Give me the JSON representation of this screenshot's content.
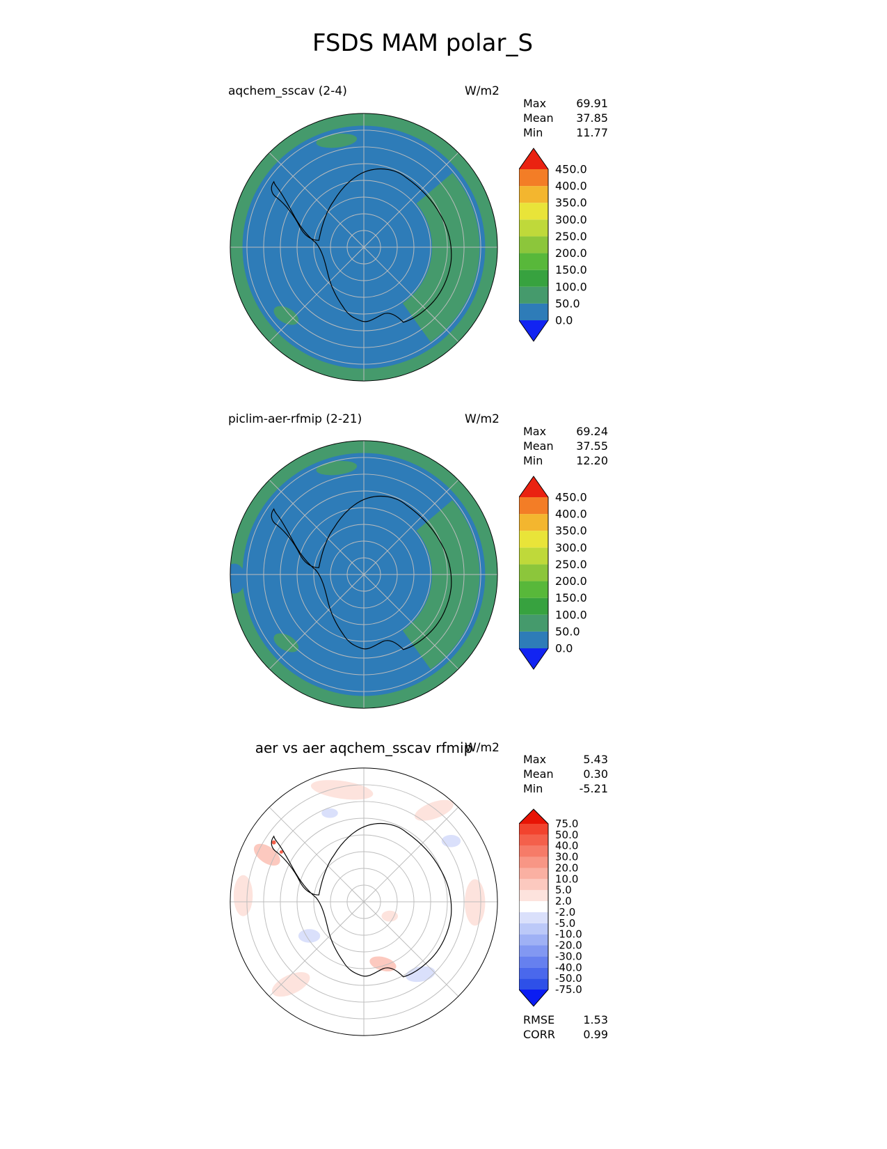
{
  "page": {
    "title": "FSDS MAM polar_S"
  },
  "panels": [
    {
      "title": "aqchem_sscav (2-4)",
      "units": "W/m2",
      "stats": [
        {
          "label": "Max",
          "value": "69.91"
        },
        {
          "label": "Mean",
          "value": "37.85"
        },
        {
          "label": "Min",
          "value": "11.77"
        }
      ],
      "colorbar": {
        "labels": [
          "0.0",
          "50.0",
          "100.0",
          "150.0",
          "200.0",
          "250.0",
          "300.0",
          "350.0",
          "400.0",
          "450.0"
        ],
        "colors": [
          "#2e7cb8",
          "#459a6c",
          "#37a23f",
          "#58b83a",
          "#8cc63b",
          "#bfd93a",
          "#e9e439",
          "#f3b62f",
          "#f37d26"
        ],
        "over": "#ea2211",
        "under": "#1224f2"
      }
    },
    {
      "title": "piclim-aer-rfmip (2-21)",
      "units": "W/m2",
      "stats": [
        {
          "label": "Max",
          "value": "69.24"
        },
        {
          "label": "Mean",
          "value": "37.55"
        },
        {
          "label": "Min",
          "value": "12.20"
        }
      ],
      "colorbar": {
        "labels": [
          "0.0",
          "50.0",
          "100.0",
          "150.0",
          "200.0",
          "250.0",
          "300.0",
          "350.0",
          "400.0",
          "450.0"
        ],
        "colors": [
          "#2e7cb8",
          "#459a6c",
          "#37a23f",
          "#58b83a",
          "#8cc63b",
          "#bfd93a",
          "#e9e439",
          "#f3b62f",
          "#f37d26"
        ],
        "over": "#ea2211",
        "under": "#1224f2"
      }
    },
    {
      "title": "aer vs aer aqchem_sscav rfmip",
      "units": "W/m2",
      "stats": [
        {
          "label": "Max",
          "value": "5.43"
        },
        {
          "label": "Mean",
          "value": "0.30"
        },
        {
          "label": "Min",
          "value": "-5.21"
        }
      ],
      "metrics": [
        {
          "label": "RMSE",
          "value": "1.53"
        },
        {
          "label": "CORR",
          "value": "0.99"
        }
      ],
      "colorbar": {
        "labels": [
          "-75.0",
          "-50.0",
          "-40.0",
          "-30.0",
          "-20.0",
          "-10.0",
          "-5.0",
          "-2.0",
          "2.0",
          "5.0",
          "10.0",
          "20.0",
          "30.0",
          "40.0",
          "50.0",
          "75.0"
        ],
        "colors": [
          "#2e50e8",
          "#4a68ec",
          "#6680ef",
          "#8298f2",
          "#9fb1f5",
          "#bcc9f8",
          "#dae0fb",
          "#ffffff",
          "#fde3dd",
          "#fcc9bf",
          "#fab0a2",
          "#f89685",
          "#f67b68",
          "#f4604b",
          "#f2432e"
        ],
        "over": "#e81405",
        "under": "#0b1df2"
      }
    }
  ],
  "chart_data": [
    {
      "type": "heatmap",
      "subtype": "south_polar_map",
      "title": "aqchem_sscav (2-4)",
      "units": "W/m2",
      "stats": {
        "max": 69.91,
        "mean": 37.85,
        "min": 11.77
      },
      "colorbar_levels": [
        0,
        50,
        100,
        150,
        200,
        250,
        300,
        350,
        400,
        450
      ],
      "colorbar_extend": "both",
      "legend_position": "right"
    },
    {
      "type": "heatmap",
      "subtype": "south_polar_map",
      "title": "piclim-aer-rfmip (2-21)",
      "units": "W/m2",
      "stats": {
        "max": 69.24,
        "mean": 37.55,
        "min": 12.2
      },
      "colorbar_levels": [
        0,
        50,
        100,
        150,
        200,
        250,
        300,
        350,
        400,
        450
      ],
      "colorbar_extend": "both",
      "legend_position": "right"
    },
    {
      "type": "heatmap",
      "subtype": "south_polar_difference_map",
      "title": "aer vs aer aqchem_sscav rfmip",
      "units": "W/m2",
      "stats": {
        "max": 5.43,
        "mean": 0.3,
        "min": -5.21
      },
      "metrics": {
        "rmse": 1.53,
        "corr": 0.99
      },
      "colorbar_levels": [
        -75,
        -50,
        -40,
        -30,
        -20,
        -10,
        -5,
        -2,
        2,
        5,
        10,
        20,
        30,
        40,
        50,
        75
      ],
      "colorbar_extend": "both",
      "legend_position": "right"
    }
  ]
}
